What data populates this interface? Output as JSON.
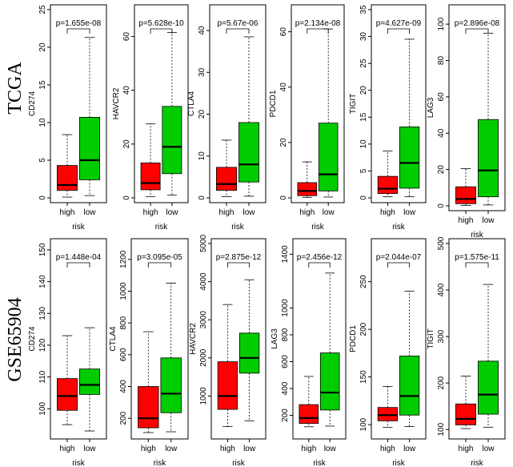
{
  "figure": {
    "row_labels": [
      "TCGA",
      "GSE65904"
    ],
    "colors": {
      "high": "#ff0000",
      "low": "#00cc00",
      "outline": "#000000"
    }
  },
  "chart_data": [
    {
      "type": "boxplot",
      "dataset": "TCGA",
      "ylabel": "CD274",
      "xlabel": "risk",
      "categories": [
        "high",
        "low"
      ],
      "pvalue": "p=1.655e-08",
      "ylim": [
        0,
        25
      ],
      "yticks": [
        0,
        5,
        10,
        15,
        20,
        25
      ],
      "boxes": [
        {
          "name": "high",
          "min": 0.1,
          "q1": 1.0,
          "median": 1.7,
          "q3": 4.3,
          "max": 8.4
        },
        {
          "name": "low",
          "min": 0.3,
          "q1": 2.4,
          "median": 5.0,
          "q3": 10.7,
          "max": 21.3
        }
      ]
    },
    {
      "type": "boxplot",
      "dataset": "TCGA",
      "ylabel": "HAVCR2",
      "xlabel": "risk",
      "categories": [
        "high",
        "low"
      ],
      "pvalue": "p=5.628e-10",
      "ylim": [
        0,
        70
      ],
      "yticks": [
        0,
        20,
        40,
        60
      ],
      "boxes": [
        {
          "name": "high",
          "min": 0.5,
          "q1": 3.0,
          "median": 5.5,
          "q3": 13.0,
          "max": 27.5
        },
        {
          "name": "low",
          "min": 1.0,
          "q1": 9.0,
          "median": 19.0,
          "q3": 34.0,
          "max": 61.5
        }
      ]
    },
    {
      "type": "boxplot",
      "dataset": "TCGA",
      "ylabel": "CTLA4",
      "xlabel": "risk",
      "categories": [
        "high",
        "low"
      ],
      "pvalue": "p=5.67e-06",
      "ylim": [
        0,
        45
      ],
      "yticks": [
        0,
        10,
        20,
        30,
        40
      ],
      "boxes": [
        {
          "name": "high",
          "min": 0.3,
          "q1": 1.8,
          "median": 3.3,
          "q3": 7.3,
          "max": 13.8
        },
        {
          "name": "low",
          "min": 0.4,
          "q1": 3.8,
          "median": 8.0,
          "q3": 18.0,
          "max": 38.5
        }
      ]
    },
    {
      "type": "boxplot",
      "dataset": "TCGA",
      "ylabel": "PDCD1",
      "xlabel": "risk",
      "categories": [
        "high",
        "low"
      ],
      "pvalue": "p=2.134e-08",
      "ylim": [
        0,
        68
      ],
      "yticks": [
        0,
        20,
        40,
        60
      ],
      "boxes": [
        {
          "name": "high",
          "min": 0.2,
          "q1": 0.8,
          "median": 2.5,
          "q3": 5.5,
          "max": 13.0
        },
        {
          "name": "low",
          "min": 0.3,
          "q1": 2.5,
          "median": 8.5,
          "q3": 27.0,
          "max": 61.0
        }
      ]
    },
    {
      "type": "boxplot",
      "dataset": "TCGA",
      "ylabel": "TIGIT",
      "xlabel": "risk",
      "categories": [
        "high",
        "low"
      ],
      "pvalue": "p=4.627e-09",
      "ylim": [
        0,
        35
      ],
      "yticks": [
        0,
        5,
        10,
        15,
        20,
        25,
        30,
        35
      ],
      "boxes": [
        {
          "name": "high",
          "min": 0.2,
          "q1": 0.8,
          "median": 1.7,
          "q3": 4.0,
          "max": 8.7
        },
        {
          "name": "low",
          "min": 0.2,
          "q1": 1.8,
          "median": 6.5,
          "q3": 13.2,
          "max": 29.5
        }
      ]
    },
    {
      "type": "boxplot",
      "dataset": "TCGA",
      "ylabel": "LAG3",
      "xlabel": "risk",
      "categories": [
        "high",
        "low"
      ],
      "pvalue": "p=2.896e-08",
      "ylim": [
        0,
        108
      ],
      "yticks": [
        0,
        20,
        40,
        60,
        80,
        100
      ],
      "boxes": [
        {
          "name": "high",
          "min": 0.2,
          "q1": 1.2,
          "median": 3.8,
          "q3": 10.5,
          "max": 20.5
        },
        {
          "name": "low",
          "min": 0.5,
          "q1": 5.0,
          "median": 19.5,
          "q3": 47.5,
          "max": 95.0
        }
      ]
    },
    {
      "type": "boxplot",
      "dataset": "GSE65904",
      "ylabel": "CD274",
      "xlabel": "risk",
      "categories": [
        "high",
        "low"
      ],
      "pvalue": "p=1.448e-04",
      "ylim": [
        92,
        152
      ],
      "yticks": [
        100,
        110,
        120,
        130,
        140,
        150
      ],
      "boxes": [
        {
          "name": "high",
          "min": 95.0,
          "q1": 99.5,
          "median": 104.0,
          "q3": 109.5,
          "max": 123.0
        },
        {
          "name": "low",
          "min": 93.0,
          "q1": 104.5,
          "median": 107.5,
          "q3": 112.5,
          "max": 125.5
        }
      ]
    },
    {
      "type": "boxplot",
      "dataset": "GSE65904",
      "ylabel": "CTLA4",
      "xlabel": "risk",
      "categories": [
        "high",
        "low"
      ],
      "pvalue": "p=3.095e-05",
      "ylim": [
        100,
        1300
      ],
      "yticks": [
        200,
        400,
        600,
        800,
        1000,
        1200
      ],
      "boxes": [
        {
          "name": "high",
          "min": 110,
          "q1": 140,
          "median": 200,
          "q3": 400,
          "max": 745
        },
        {
          "name": "low",
          "min": 115,
          "q1": 235,
          "median": 355,
          "q3": 580,
          "max": 1050
        }
      ]
    },
    {
      "type": "boxplot",
      "dataset": "GSE65904",
      "ylabel": "HAVCR2",
      "xlabel": "risk",
      "categories": [
        "high",
        "low"
      ],
      "pvalue": "p=2.875e-12",
      "ylim": [
        0,
        5000
      ],
      "yticks": [
        1000,
        2000,
        3000,
        4000,
        5000
      ],
      "boxes": [
        {
          "name": "high",
          "min": 200,
          "q1": 650,
          "median": 1000,
          "q3": 1900,
          "max": 3400
        },
        {
          "name": "low",
          "min": 350,
          "q1": 1600,
          "median": 2000,
          "q3": 2650,
          "max": 4050
        }
      ]
    },
    {
      "type": "boxplot",
      "dataset": "GSE65904",
      "ylabel": "LAG3",
      "xlabel": "risk",
      "categories": [
        "high",
        "low"
      ],
      "pvalue": "p=2.456e-12",
      "ylim": [
        60,
        1480
      ],
      "yticks": [
        200,
        400,
        600,
        800,
        1000,
        1400
      ],
      "boxes": [
        {
          "name": "high",
          "min": 115,
          "q1": 140,
          "median": 180,
          "q3": 280,
          "max": 490
        },
        {
          "name": "low",
          "min": 120,
          "q1": 240,
          "median": 370,
          "q3": 665,
          "max": 1260
        }
      ]
    },
    {
      "type": "boxplot",
      "dataset": "GSE65904",
      "ylabel": "PDCD1",
      "xlabel": "risk",
      "categories": [
        "high",
        "low"
      ],
      "pvalue": "p=2.044e-07",
      "ylim": [
        90,
        290
      ],
      "yticks": [
        100,
        150,
        200,
        250
      ],
      "boxes": [
        {
          "name": "high",
          "min": 97,
          "q1": 104,
          "median": 110,
          "q3": 118,
          "max": 140
        },
        {
          "name": "low",
          "min": 98,
          "q1": 110,
          "median": 130,
          "q3": 172,
          "max": 240
        }
      ]
    },
    {
      "type": "boxplot",
      "dataset": "GSE65904",
      "ylabel": "TIGIT",
      "xlabel": "risk",
      "categories": [
        "high",
        "low"
      ],
      "pvalue": "p=1.575e-11",
      "ylim": [
        90,
        500
      ],
      "yticks": [
        100,
        200,
        300,
        400,
        500
      ],
      "boxes": [
        {
          "name": "high",
          "min": 102,
          "q1": 110,
          "median": 123,
          "q3": 155,
          "max": 215
        },
        {
          "name": "low",
          "min": 105,
          "q1": 133,
          "median": 175,
          "q3": 247,
          "max": 412
        }
      ]
    }
  ]
}
